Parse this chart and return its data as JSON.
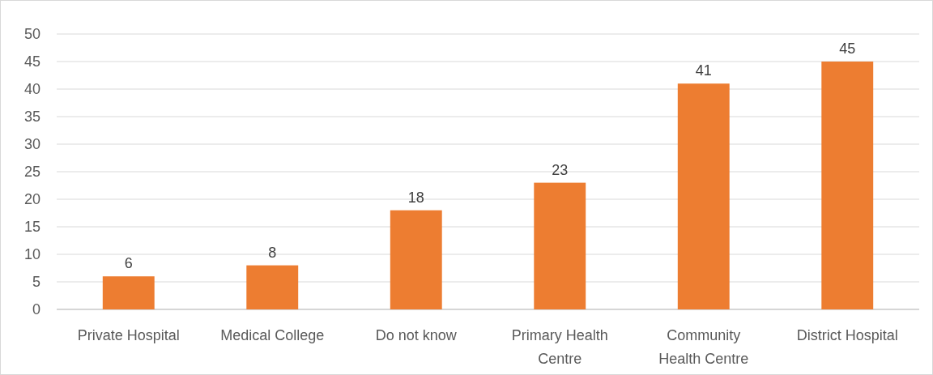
{
  "chart_data": {
    "type": "bar",
    "categories": [
      "Private Hospital",
      "Medical College",
      "Do not know",
      "Primary Health Centre",
      "Community Health Centre",
      "District Hospital"
    ],
    "values": [
      6,
      8,
      18,
      23,
      41,
      45
    ],
    "color": "#ed7d31",
    "ylim": [
      0,
      50
    ],
    "yticks": [
      0,
      5,
      10,
      15,
      20,
      25,
      30,
      35,
      40,
      45,
      50
    ],
    "grid": "y",
    "data_labels": true
  }
}
